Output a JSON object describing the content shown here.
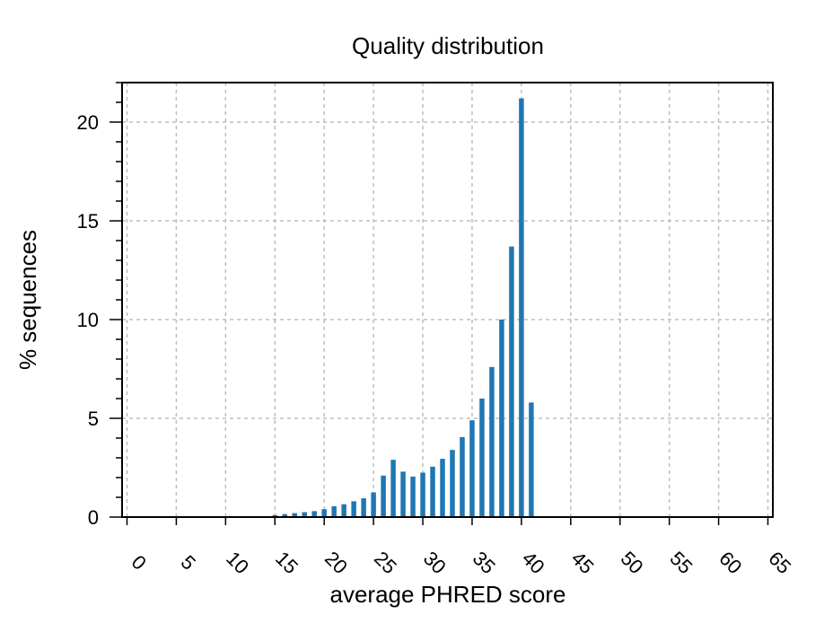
{
  "chart_data": {
    "type": "bar",
    "title": "Quality distribution",
    "xlabel": "average PHRED score",
    "ylabel": "% sequences",
    "xlim": [
      -0.5,
      65.5
    ],
    "ylim": [
      0,
      22
    ],
    "xticks": [
      0,
      5,
      10,
      15,
      20,
      25,
      30,
      35,
      40,
      45,
      50,
      55,
      60,
      65
    ],
    "yticks": [
      0,
      5,
      10,
      15,
      20
    ],
    "grid": true,
    "color": "#1f77b4",
    "x": [
      14,
      15,
      16,
      17,
      18,
      19,
      20,
      21,
      22,
      23,
      24,
      25,
      26,
      27,
      28,
      29,
      30,
      31,
      32,
      33,
      34,
      35,
      36,
      37,
      38,
      39,
      40,
      41
    ],
    "values": [
      0.05,
      0.1,
      0.15,
      0.2,
      0.25,
      0.3,
      0.4,
      0.55,
      0.65,
      0.8,
      0.95,
      1.25,
      2.1,
      2.9,
      2.3,
      2.05,
      2.25,
      2.55,
      2.95,
      3.4,
      4.05,
      4.9,
      6.0,
      7.6,
      10.0,
      13.7,
      21.2,
      5.8
    ]
  }
}
